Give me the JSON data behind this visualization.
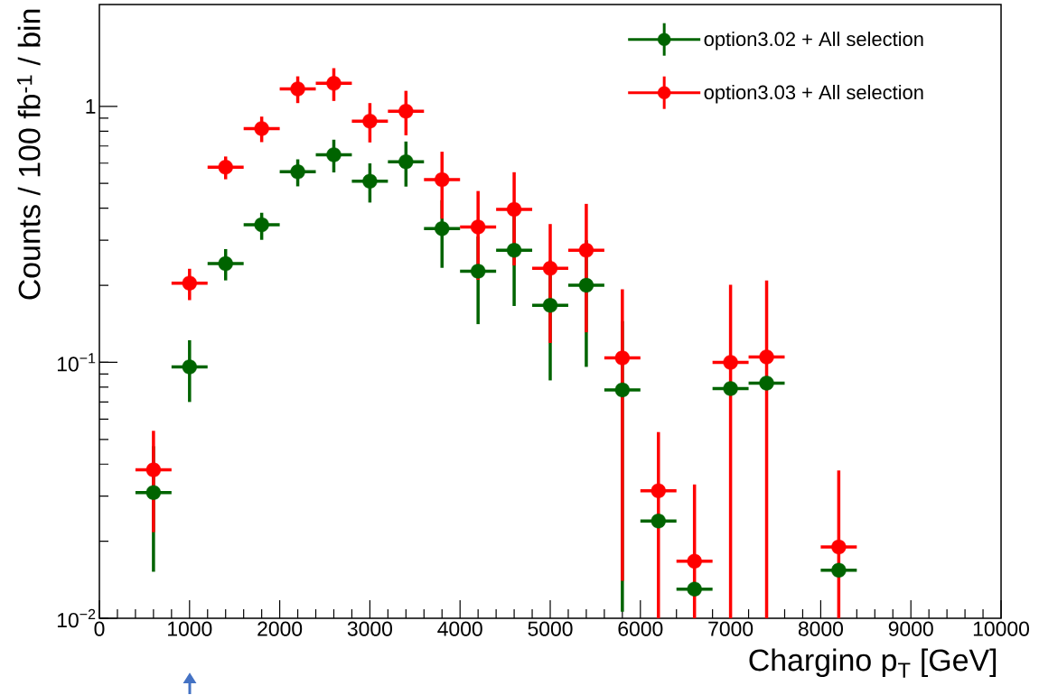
{
  "chart_data": {
    "type": "scatter",
    "xlabel": "Chargino p$_{T}$ [GeV]",
    "ylabel": "Counts / 100 fb$^{-1}$ / bin",
    "x": [
      600,
      1000,
      1400,
      1800,
      2200,
      2600,
      3000,
      3400,
      3800,
      4200,
      4600,
      5000,
      5400,
      5800,
      6200,
      6600,
      7000,
      7400,
      8200
    ],
    "xlim": [
      0,
      10000
    ],
    "xticks": [
      0,
      1000,
      2000,
      3000,
      4000,
      5000,
      6000,
      7000,
      8000,
      9000,
      10000
    ],
    "ylim": [
      0.01,
      2.5
    ],
    "yticks": [
      {
        "value": 0.01,
        "label": "10$^{−2}$"
      },
      {
        "value": 0.1,
        "label": "10$^{−1}$"
      },
      1
    ],
    "log": "y",
    "marker": "circle",
    "legend": "top right",
    "series": [
      {
        "name": "option3.02 + All selection",
        "color": "#006400",
        "values": [
          0.031,
          0.096,
          0.243,
          0.345,
          0.555,
          0.647,
          0.51,
          0.608,
          0.333,
          0.227,
          0.274,
          0.167,
          0.2,
          0.078,
          0.024,
          0.013,
          0.079,
          0.083,
          0.0154
        ],
        "errors": [
          [
            0.0152,
            0.047
          ],
          [
            0.07,
            0.122
          ],
          [
            0.209,
            0.277
          ],
          [
            0.301,
            0.384
          ],
          [
            0.487,
            0.621
          ],
          [
            0.552,
            0.741
          ],
          [
            0.421,
            0.599
          ],
          [
            0.486,
            0.729
          ],
          [
            0.234,
            0.43
          ],
          [
            0.141,
            0.31
          ],
          [
            0.166,
            0.38
          ],
          [
            0.085,
            0.25
          ],
          [
            0.096,
            0.3
          ],
          [
            0.0106,
            0.145
          ],
          null,
          null,
          null,
          null,
          null
        ],
        "xerrors": [
          200,
          200,
          200,
          200,
          200,
          200,
          200,
          200,
          200,
          200,
          200,
          200,
          200,
          200,
          200,
          200,
          200,
          200,
          200
        ]
      },
      {
        "name": "option3.03 + All selection",
        "color": "#ff0000",
        "values": [
          0.038,
          0.204,
          0.579,
          0.819,
          1.17,
          1.23,
          0.876,
          0.958,
          0.517,
          0.338,
          0.396,
          0.233,
          0.274,
          0.104,
          0.0315,
          0.0167,
          0.1,
          0.105,
          0.019
        ],
        "errors": [
          [
            0.0217,
            0.054
          ],
          [
            0.175,
            0.232
          ],
          [
            0.519,
            0.637
          ],
          [
            0.725,
            0.912
          ],
          [
            1.03,
            1.31
          ],
          [
            1.05,
            1.41
          ],
          [
            0.723,
            1.03
          ],
          [
            0.771,
            1.15
          ],
          [
            0.364,
            0.665
          ],
          [
            0.21,
            0.467
          ],
          [
            0.239,
            0.553
          ],
          [
            0.119,
            0.347
          ],
          [
            0.131,
            0.416
          ],
          [
            0.014,
            0.193
          ],
          [
            0.01,
            0.0534
          ],
          [
            0.01,
            0.0333
          ],
          [
            0.01,
            0.201
          ],
          [
            0.01,
            0.209
          ],
          [
            0.01,
            0.0378
          ]
        ],
        "xerrors": [
          200,
          200,
          200,
          200,
          200,
          200,
          200,
          200,
          200,
          200,
          200,
          200,
          200,
          200,
          200,
          200,
          200,
          200,
          200
        ]
      }
    ]
  }
}
